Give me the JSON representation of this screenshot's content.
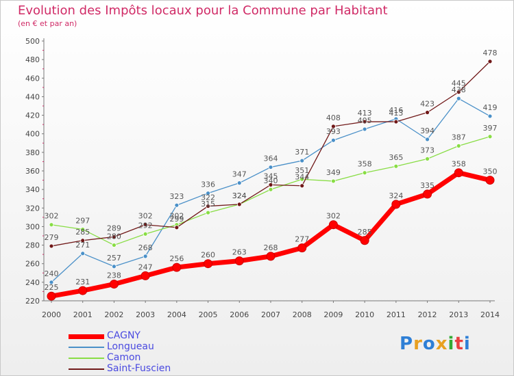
{
  "title": "Evolution des Impôts locaux pour la Commune par Habitant",
  "subtitle": "(en € et par an)",
  "brand": {
    "letters": [
      "P",
      "r",
      "o",
      "x",
      "i",
      "t",
      "i"
    ]
  },
  "chart_data": {
    "type": "line",
    "title": "Evolution des Impôts locaux pour la Commune par Habitant",
    "ylabel": "(en € et par an)",
    "xlabel": "",
    "x": [
      "2000",
      "2001",
      "2002",
      "2003",
      "2004",
      "2005",
      "2006",
      "2007",
      "2008",
      "2009",
      "2010",
      "2011",
      "2012",
      "2013",
      "2014"
    ],
    "ylim": [
      220,
      500
    ],
    "yticks": [
      "220",
      "240",
      "260",
      "280",
      "300",
      "320",
      "340",
      "360",
      "380",
      "400",
      "420",
      "440",
      "460",
      "480",
      "500"
    ],
    "series": [
      {
        "name": "CAGNY",
        "color": "#ff0000",
        "values": [
          225,
          231,
          238,
          247,
          256,
          260,
          263,
          268,
          277,
          302,
          285,
          324,
          335,
          358,
          350
        ]
      },
      {
        "name": "Longueau",
        "color": "#4a90c8",
        "values": [
          240,
          271,
          257,
          268,
          323,
          336,
          347,
          364,
          371,
          393,
          405,
          416,
          394,
          438,
          419
        ]
      },
      {
        "name": "Camon",
        "color": "#88dd44",
        "values": [
          302,
          297,
          280,
          292,
          302,
          315,
          324,
          340,
          351,
          349,
          358,
          365,
          373,
          387,
          397
        ]
      },
      {
        "name": "Saint-Fuscien",
        "color": "#701818",
        "values": [
          279,
          285,
          289,
          302,
          299,
          322,
          324,
          345,
          344,
          408,
          413,
          413,
          423,
          445,
          478
        ]
      }
    ],
    "grid": false,
    "legend": "bottom-left"
  }
}
